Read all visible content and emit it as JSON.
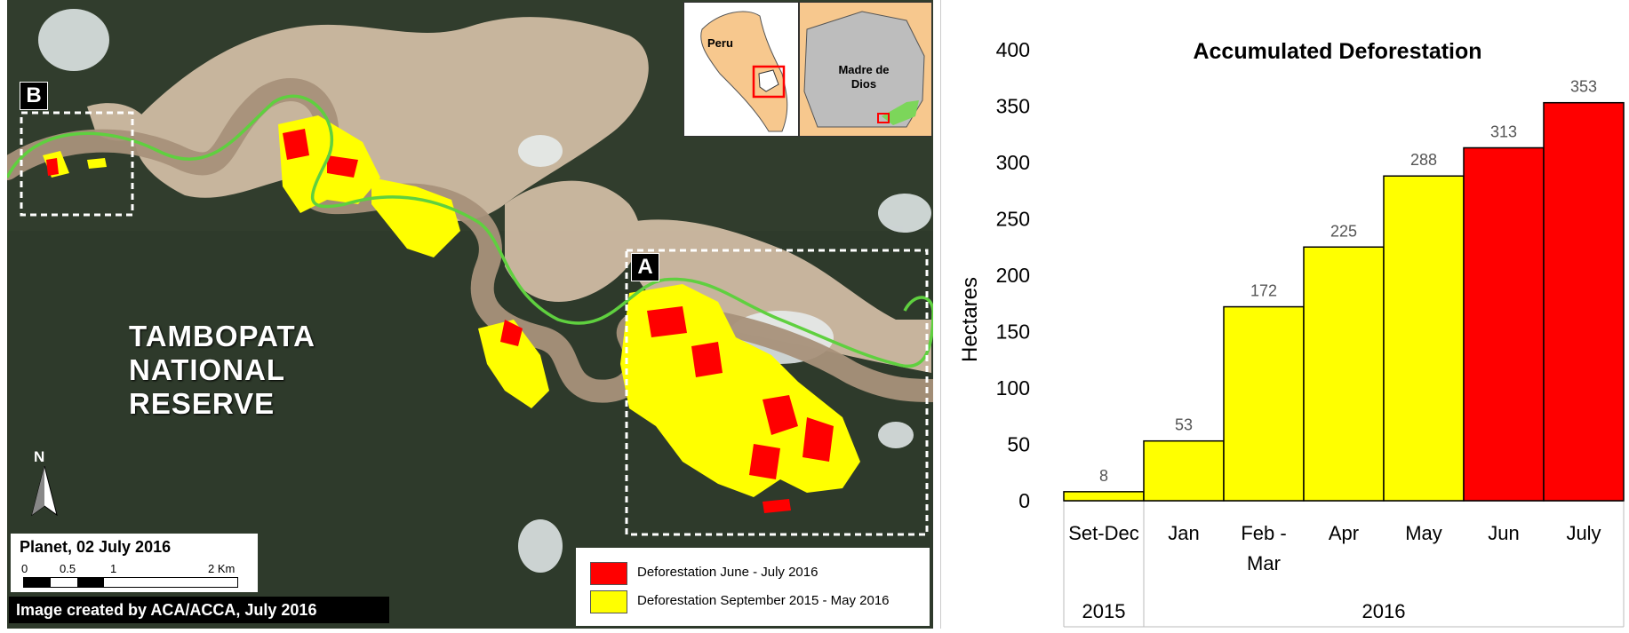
{
  "map": {
    "reserve_name": [
      "TAMBOPATA",
      "NATIONAL",
      "RESERVE"
    ],
    "box_labels": {
      "a": "A",
      "b": "B"
    },
    "inset": {
      "country": "Peru",
      "region": [
        "Madre de",
        "Dios"
      ]
    },
    "north_label": "N",
    "scale": {
      "title": "Planet, 02 July 2016",
      "ticks": [
        "0",
        "0.5",
        "1",
        "2 Km"
      ]
    },
    "credit": "Image created by ACA/ACCA, July 2016",
    "legend": [
      {
        "label": "Deforestation June - July 2016",
        "color": "#ff0000"
      },
      {
        "label": "Deforestation September 2015 - May 2016",
        "color": "#ffff00"
      }
    ],
    "colors": {
      "forest": "#2f3a2c",
      "river": "#a8917a",
      "mining": "#d9c3ad",
      "boundary": "#5fd03f"
    }
  },
  "chart_data": {
    "type": "bar",
    "title": "Accumulated Deforestation",
    "ylabel": "Hectares",
    "xlabel": "",
    "ylim": [
      0,
      400
    ],
    "yticks": [
      0,
      50,
      100,
      150,
      200,
      250,
      300,
      350,
      400
    ],
    "categories": [
      "Set-Dec",
      "Jan",
      "Feb - Mar",
      "Apr",
      "May",
      "Jun",
      "July"
    ],
    "values": [
      8,
      53,
      172,
      225,
      288,
      313,
      353
    ],
    "colors": [
      "#ffff00",
      "#ffff00",
      "#ffff00",
      "#ffff00",
      "#ffff00",
      "#ff0000",
      "#ff0000"
    ],
    "year_groups": [
      {
        "label": "2015",
        "span": 1
      },
      {
        "label": "2016",
        "span": 6
      }
    ]
  }
}
